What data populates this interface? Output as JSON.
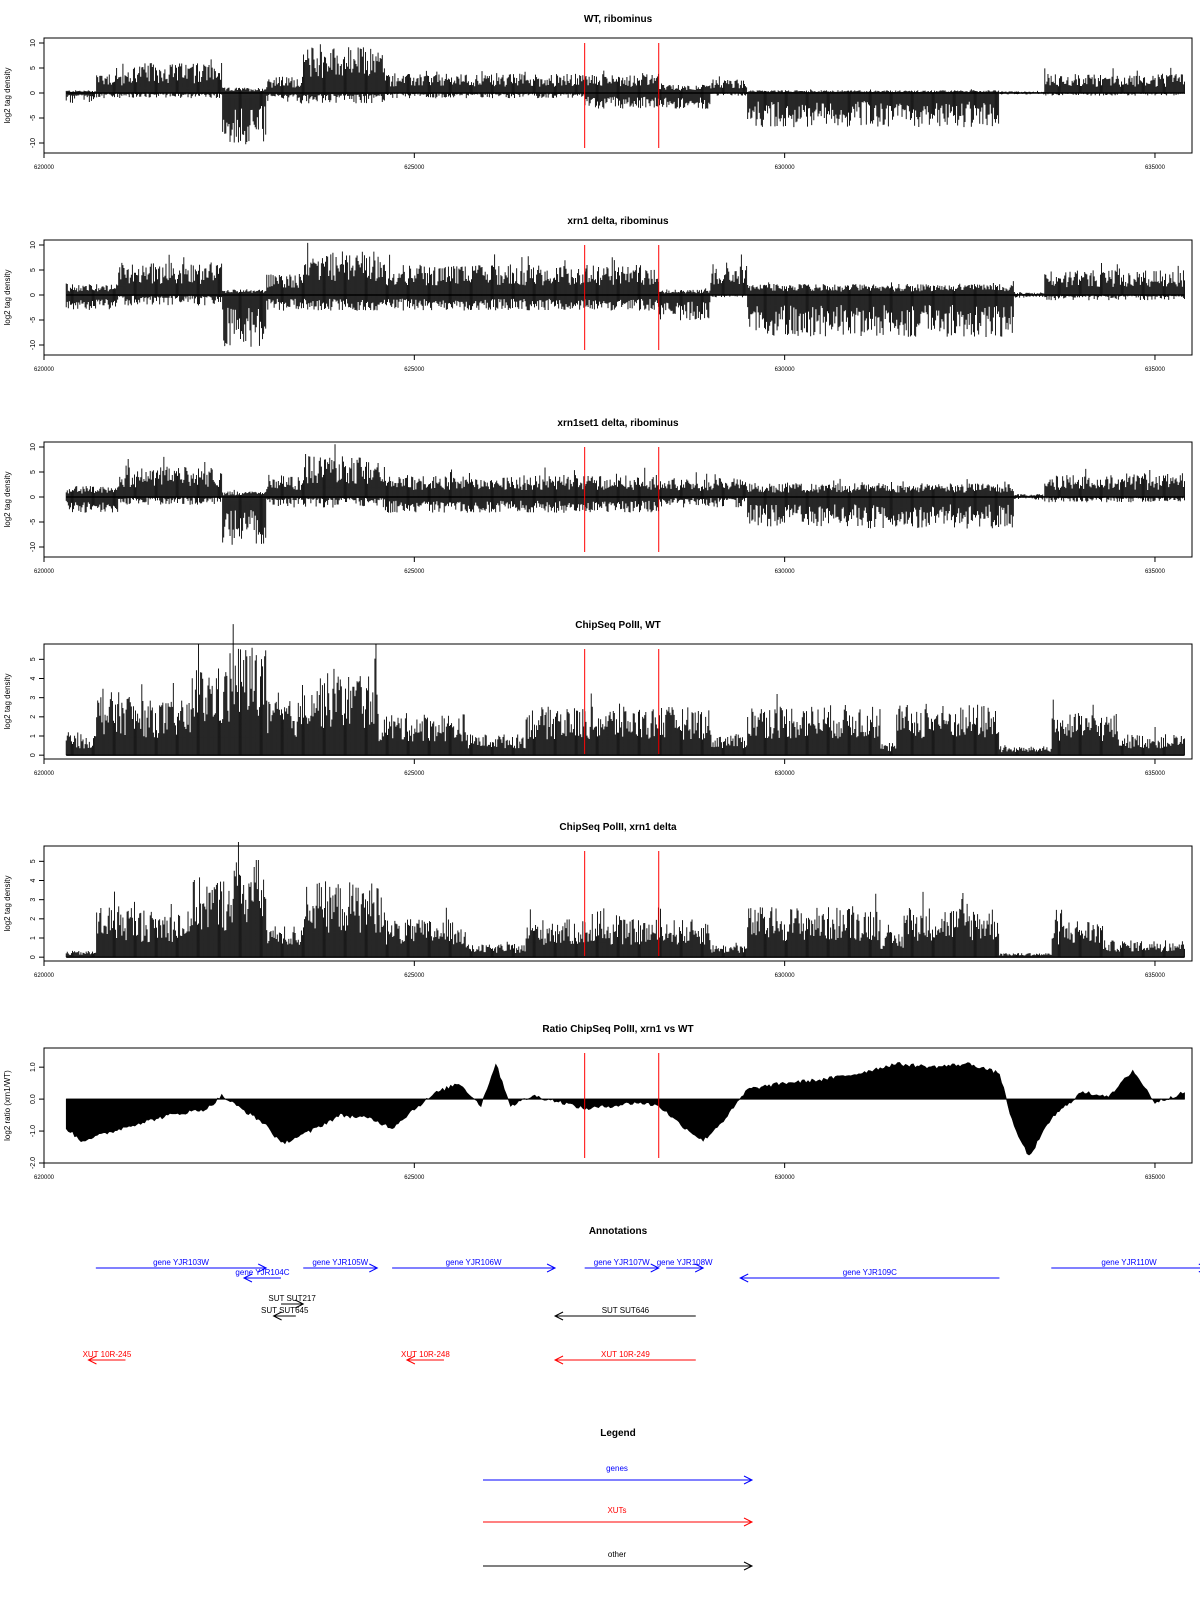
{
  "colors": {
    "gene": "#0000ff",
    "xut": "#ff0000",
    "other": "#000000",
    "marker": "#ff0000",
    "bars": "#000000"
  },
  "chart_data": [
    {
      "id": "wt_ribominus",
      "type": "bar",
      "title": "WT, ribominus",
      "ylabel": "log2 tag density",
      "xlim": [
        620000,
        635500
      ],
      "ylim": [
        -12,
        11
      ],
      "yticks": [
        10,
        5,
        0,
        -5,
        -10
      ],
      "xticks": [
        620000,
        625000,
        630000,
        635000
      ],
      "markers": [
        627300,
        628300
      ],
      "data_start": 620300,
      "data_end": 635400,
      "signed": true,
      "segments": [
        {
          "from": 620300,
          "to": 620700,
          "pos": 0.5,
          "neg": 2
        },
        {
          "from": 620700,
          "to": 621200,
          "pos": 4,
          "neg": 1
        },
        {
          "from": 621200,
          "to": 622400,
          "pos": 5.5,
          "neg": 1
        },
        {
          "from": 622400,
          "to": 623000,
          "pos": 1,
          "neg": 10
        },
        {
          "from": 623000,
          "to": 623500,
          "pos": 3,
          "neg": 2
        },
        {
          "from": 623500,
          "to": 624600,
          "pos": 8.5,
          "neg": 2
        },
        {
          "from": 624600,
          "to": 627300,
          "pos": 3.5,
          "neg": 1
        },
        {
          "from": 627300,
          "to": 628300,
          "pos": 3.5,
          "neg": 3
        },
        {
          "from": 628300,
          "to": 629000,
          "pos": 1.5,
          "neg": 3
        },
        {
          "from": 629000,
          "to": 629500,
          "pos": 2.5,
          "neg": 0.5
        },
        {
          "from": 629500,
          "to": 632900,
          "pos": 0.5,
          "neg": 6.5
        },
        {
          "from": 632900,
          "to": 633500,
          "pos": 0.3,
          "neg": 0.3
        },
        {
          "from": 633500,
          "to": 635400,
          "pos": 3.5,
          "neg": 0.5
        }
      ]
    },
    {
      "id": "xrn1_ribominus",
      "type": "bar",
      "title": "xrn1 delta, ribominus",
      "ylabel": "log2 tag density",
      "xlim": [
        620000,
        635500
      ],
      "ylim": [
        -12,
        11
      ],
      "yticks": [
        10,
        5,
        0,
        -5,
        -10
      ],
      "xticks": [
        620000,
        625000,
        630000,
        635000
      ],
      "markers": [
        627300,
        628300
      ],
      "data_start": 620300,
      "data_end": 635400,
      "signed": true,
      "segments": [
        {
          "from": 620300,
          "to": 621000,
          "pos": 2,
          "neg": 3
        },
        {
          "from": 621000,
          "to": 622400,
          "pos": 6,
          "neg": 2
        },
        {
          "from": 622400,
          "to": 623000,
          "pos": 1,
          "neg": 10
        },
        {
          "from": 623000,
          "to": 623500,
          "pos": 4,
          "neg": 3
        },
        {
          "from": 623500,
          "to": 624600,
          "pos": 8,
          "neg": 3
        },
        {
          "from": 624600,
          "to": 628300,
          "pos": 5.5,
          "neg": 3
        },
        {
          "from": 628300,
          "to": 629000,
          "pos": 1,
          "neg": 5
        },
        {
          "from": 629000,
          "to": 629500,
          "pos": 6,
          "neg": 0.5
        },
        {
          "from": 629500,
          "to": 633100,
          "pos": 2,
          "neg": 8
        },
        {
          "from": 633100,
          "to": 633500,
          "pos": 0.5,
          "neg": 0.5
        },
        {
          "from": 633500,
          "to": 635400,
          "pos": 4.5,
          "neg": 1
        }
      ]
    },
    {
      "id": "xrn1set1_ribominus",
      "type": "bar",
      "title": "xrn1set1 delta, ribominus",
      "ylabel": "log2 tag density",
      "xlim": [
        620000,
        635500
      ],
      "ylim": [
        -12,
        11
      ],
      "yticks": [
        10,
        5,
        0,
        -5,
        -10
      ],
      "xticks": [
        620000,
        625000,
        630000,
        635000
      ],
      "markers": [
        627300,
        628300
      ],
      "data_start": 620300,
      "data_end": 635400,
      "signed": true,
      "segments": [
        {
          "from": 620300,
          "to": 621000,
          "pos": 2,
          "neg": 3
        },
        {
          "from": 621000,
          "to": 622400,
          "pos": 5.5,
          "neg": 1.5
        },
        {
          "from": 622400,
          "to": 623000,
          "pos": 1,
          "neg": 10
        },
        {
          "from": 623000,
          "to": 623500,
          "pos": 4,
          "neg": 2
        },
        {
          "from": 623500,
          "to": 624600,
          "pos": 7.5,
          "neg": 2
        },
        {
          "from": 624600,
          "to": 628300,
          "pos": 4,
          "neg": 3
        },
        {
          "from": 628300,
          "to": 629500,
          "pos": 3.5,
          "neg": 2
        },
        {
          "from": 629500,
          "to": 633100,
          "pos": 2.5,
          "neg": 6
        },
        {
          "from": 633100,
          "to": 633500,
          "pos": 0.5,
          "neg": 0.5
        },
        {
          "from": 633500,
          "to": 635400,
          "pos": 4,
          "neg": 1
        }
      ]
    },
    {
      "id": "chipseq_wt",
      "type": "bar",
      "title": "ChipSeq PolII, WT",
      "ylabel": "log2 tag density",
      "xlim": [
        620000,
        635500
      ],
      "ylim": [
        -0.2,
        5.8
      ],
      "yticks": [
        5,
        4,
        3,
        2,
        1,
        0
      ],
      "xticks": [
        620000,
        625000,
        630000,
        635000
      ],
      "markers": [
        627300,
        628300
      ],
      "data_start": 620300,
      "data_end": 635400,
      "signed": false,
      "segments": [
        {
          "from": 620300,
          "to": 620700,
          "pos": 1
        },
        {
          "from": 620700,
          "to": 621200,
          "pos": 3
        },
        {
          "from": 621200,
          "to": 622000,
          "pos": 2.6
        },
        {
          "from": 622000,
          "to": 622500,
          "pos": 4.2
        },
        {
          "from": 622500,
          "to": 623000,
          "pos": 5.3
        },
        {
          "from": 623000,
          "to": 623500,
          "pos": 2.6
        },
        {
          "from": 623500,
          "to": 624500,
          "pos": 3.9
        },
        {
          "from": 624500,
          "to": 625700,
          "pos": 2
        },
        {
          "from": 625700,
          "to": 626500,
          "pos": 1
        },
        {
          "from": 626500,
          "to": 629000,
          "pos": 2.3
        },
        {
          "from": 629000,
          "to": 629500,
          "pos": 1
        },
        {
          "from": 629500,
          "to": 631300,
          "pos": 2.4
        },
        {
          "from": 631300,
          "to": 631500,
          "pos": 0.5
        },
        {
          "from": 631500,
          "to": 632900,
          "pos": 2.4
        },
        {
          "from": 632900,
          "to": 633600,
          "pos": 0.4
        },
        {
          "from": 633600,
          "to": 634500,
          "pos": 2
        },
        {
          "from": 634500,
          "to": 635400,
          "pos": 1
        }
      ]
    },
    {
      "id": "chipseq_xrn1",
      "type": "bar",
      "title": "ChipSeq PolII, xrn1 delta",
      "ylabel": "log2 tag density",
      "xlim": [
        620000,
        635500
      ],
      "ylim": [
        -0.2,
        5.8
      ],
      "yticks": [
        5,
        4,
        3,
        2,
        1,
        0
      ],
      "xticks": [
        620000,
        625000,
        630000,
        635000
      ],
      "markers": [
        627300,
        628300
      ],
      "data_start": 620300,
      "data_end": 635400,
      "signed": false,
      "segments": [
        {
          "from": 620300,
          "to": 620700,
          "pos": 0.3
        },
        {
          "from": 620700,
          "to": 621200,
          "pos": 2.5
        },
        {
          "from": 621200,
          "to": 622000,
          "pos": 2.2
        },
        {
          "from": 622000,
          "to": 622500,
          "pos": 3.8
        },
        {
          "from": 622500,
          "to": 623000,
          "pos": 4.7
        },
        {
          "from": 623000,
          "to": 623500,
          "pos": 1.5
        },
        {
          "from": 623500,
          "to": 624600,
          "pos": 3.6
        },
        {
          "from": 624600,
          "to": 625700,
          "pos": 1.8
        },
        {
          "from": 625700,
          "to": 626500,
          "pos": 0.6
        },
        {
          "from": 626500,
          "to": 629000,
          "pos": 1.8
        },
        {
          "from": 629000,
          "to": 629500,
          "pos": 0.6
        },
        {
          "from": 629500,
          "to": 631300,
          "pos": 2.4
        },
        {
          "from": 631300,
          "to": 631600,
          "pos": 1.2
        },
        {
          "from": 631600,
          "to": 632900,
          "pos": 2.4
        },
        {
          "from": 632900,
          "to": 633600,
          "pos": 0.2
        },
        {
          "from": 633600,
          "to": 634300,
          "pos": 1.8
        },
        {
          "from": 634300,
          "to": 635400,
          "pos": 0.8
        }
      ]
    },
    {
      "id": "ratio_chipseq",
      "type": "area",
      "title": "Ratio ChipSeq PolII, xrn1 vs WT",
      "ylabel": "log2 ratio (xrn1/WT)",
      "xlim": [
        620000,
        635500
      ],
      "ylim": [
        -2.0,
        1.6
      ],
      "yticks": [
        1.0,
        0.0,
        -1.0,
        -2.0
      ],
      "ytick_labels": [
        "1.0",
        "0.0",
        "-1.0",
        "-2.0"
      ],
      "xticks": [
        620000,
        625000,
        630000,
        635000
      ],
      "markers": [
        627300,
        628300
      ],
      "x": [
        620300,
        620500,
        620800,
        621200,
        621700,
        622200,
        622400,
        622600,
        623000,
        623200,
        623600,
        624000,
        624400,
        624700,
        625000,
        625300,
        625600,
        625900,
        626100,
        626300,
        626600,
        627000,
        627300,
        627700,
        628000,
        628300,
        628600,
        628900,
        629200,
        629500,
        630000,
        630500,
        631000,
        631500,
        632000,
        632500,
        632900,
        633100,
        633300,
        633600,
        634000,
        634400,
        634700,
        635000,
        635400
      ],
      "y": [
        -0.9,
        -1.3,
        -1.1,
        -0.8,
        -0.5,
        -0.3,
        0.1,
        -0.2,
        -0.8,
        -1.4,
        -1.0,
        -0.5,
        -0.6,
        -0.9,
        -0.3,
        0.2,
        0.5,
        -0.2,
        1.1,
        -0.2,
        0.1,
        -0.1,
        -0.3,
        -0.2,
        -0.1,
        -0.2,
        -0.8,
        -1.3,
        -0.6,
        0.3,
        0.5,
        0.6,
        0.8,
        1.1,
        1.0,
        1.1,
        0.8,
        -0.9,
        -1.8,
        -0.6,
        0.2,
        0.1,
        0.9,
        -0.1,
        0.2
      ]
    }
  ],
  "tick_labels_x": [
    "620000",
    "625000",
    "630000",
    "635000"
  ],
  "annotations": {
    "title": "Annotations",
    "items": [
      {
        "label": "gene YJR103W",
        "kind": "gene",
        "from": 620700,
        "to": 623000,
        "dir": "right",
        "row": 0
      },
      {
        "label": "gene YJR104C",
        "kind": "gene",
        "from": 622700,
        "to": 623200,
        "dir": "left",
        "row": 1
      },
      {
        "label": "gene YJR105W",
        "kind": "gene",
        "from": 623500,
        "to": 624500,
        "dir": "right",
        "row": 0
      },
      {
        "label": "gene YJR106W",
        "kind": "gene",
        "from": 624700,
        "to": 626900,
        "dir": "right",
        "row": 0
      },
      {
        "label": "gene YJR107W",
        "kind": "gene",
        "from": 627300,
        "to": 628300,
        "dir": "right",
        "row": 0
      },
      {
        "label": "gene YJR108W",
        "kind": "gene",
        "from": 628400,
        "to": 628900,
        "dir": "right",
        "row": 0
      },
      {
        "label": "gene YJR109C",
        "kind": "gene",
        "from": 629400,
        "to": 632900,
        "dir": "left",
        "row": 1
      },
      {
        "label": "gene YJR110W",
        "kind": "gene",
        "from": 633600,
        "to": 635700,
        "dir": "right",
        "row": 0
      },
      {
        "label": "SUT SUT217",
        "kind": "other",
        "from": 623200,
        "to": 623500,
        "dir": "right",
        "row": 2
      },
      {
        "label": "SUT SUT645",
        "kind": "other",
        "from": 623100,
        "to": 623400,
        "dir": "left",
        "row": 3
      },
      {
        "label": "SUT SUT646",
        "kind": "other",
        "from": 626900,
        "to": 628800,
        "dir": "left",
        "row": 3
      },
      {
        "label": "XUT 10R-245",
        "kind": "xut",
        "from": 620600,
        "to": 621100,
        "dir": "left",
        "row": 4
      },
      {
        "label": "XUT 10R-248",
        "kind": "xut",
        "from": 624900,
        "to": 625400,
        "dir": "left",
        "row": 4
      },
      {
        "label": "XUT 10R-249",
        "kind": "xut",
        "from": 626900,
        "to": 628800,
        "dir": "left",
        "row": 4
      }
    ]
  },
  "legend": {
    "title": "Legend",
    "entries": [
      {
        "label": "genes",
        "kind": "gene"
      },
      {
        "label": "XUTs",
        "kind": "xut"
      },
      {
        "label": "other",
        "kind": "other"
      }
    ]
  }
}
